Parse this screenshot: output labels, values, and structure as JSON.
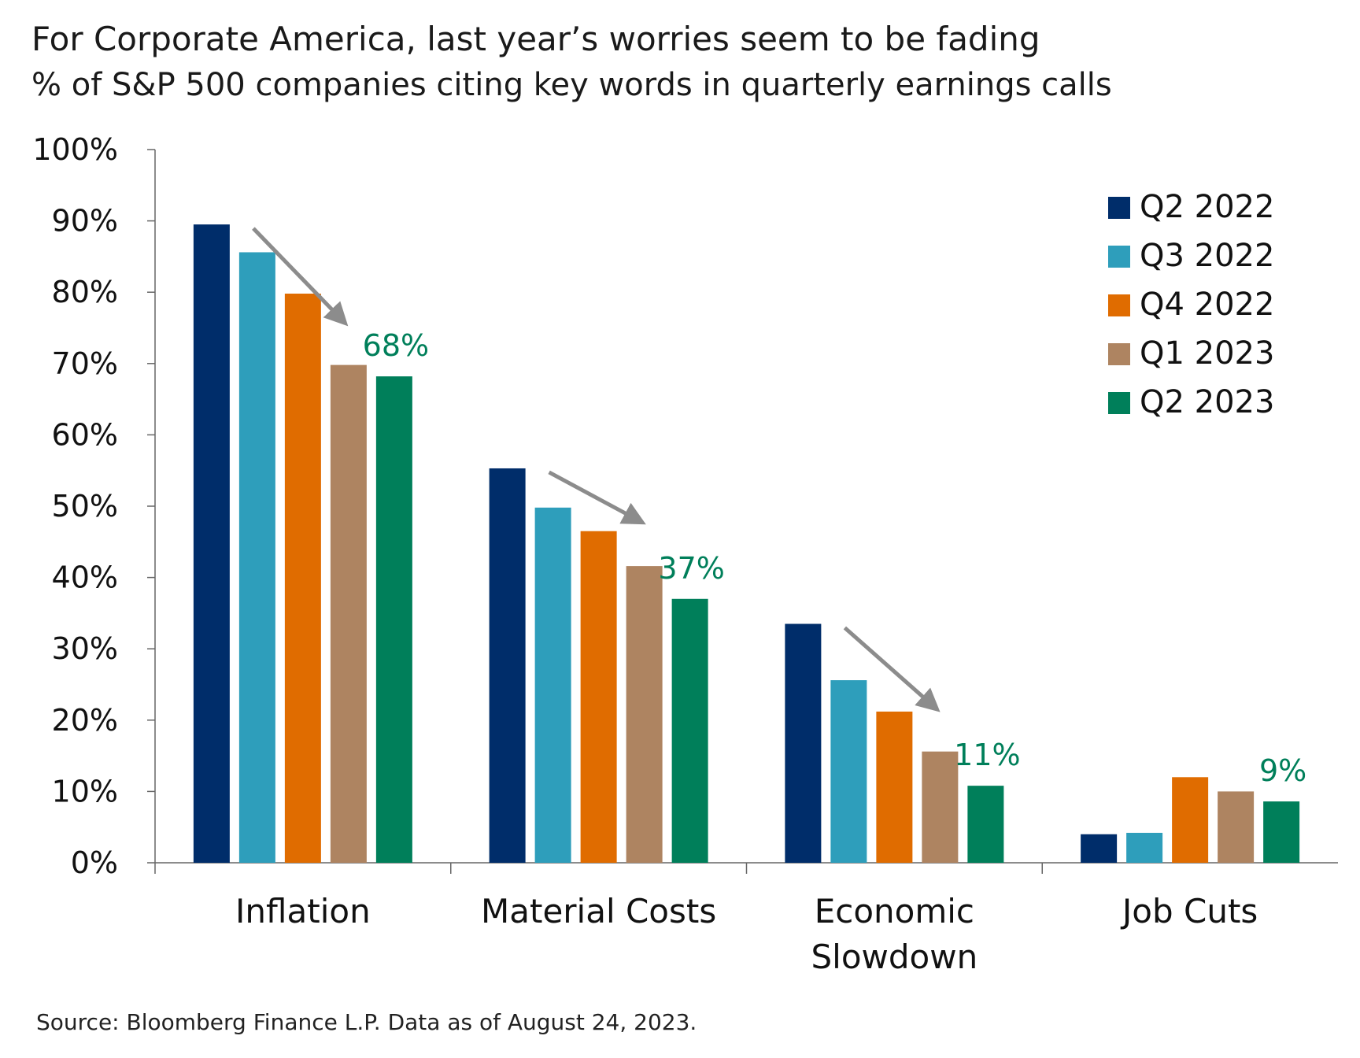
{
  "chart_data": {
    "type": "bar",
    "title": "For Corporate America, last year’s worries seem to be fading",
    "subtitle": "% of S&P 500 companies citing key words in quarterly earnings calls",
    "categories": [
      "Inflation",
      "Material Costs",
      "Economic Slowdown",
      "Job Cuts"
    ],
    "category_lines": [
      [
        "Inflation"
      ],
      [
        "Material Costs"
      ],
      [
        "Economic",
        "Slowdown"
      ],
      [
        "Job Cuts"
      ]
    ],
    "series": [
      {
        "name": "Q2 2022",
        "color": "#002d6a",
        "values": [
          89.5,
          55.3,
          33.5,
          4.0
        ]
      },
      {
        "name": "Q3 2022",
        "color": "#2e9ebb",
        "values": [
          85.6,
          49.8,
          25.6,
          4.2
        ]
      },
      {
        "name": "Q4 2022",
        "color": "#e06c00",
        "values": [
          79.8,
          46.5,
          21.2,
          12.0
        ]
      },
      {
        "name": "Q1 2023",
        "color": "#ae8461",
        "values": [
          69.8,
          41.6,
          15.6,
          10.0
        ]
      },
      {
        "name": "Q2 2023",
        "color": "#007f5a",
        "values": [
          68.2,
          37.0,
          10.8,
          8.6
        ]
      }
    ],
    "annotations": [
      "68%",
      "37%",
      "11%",
      "9%"
    ],
    "annotation_color": "#007f5a",
    "arrow_color": "#8c8c8c",
    "ylim": [
      0,
      100
    ],
    "yticks": [
      0,
      10,
      20,
      30,
      40,
      50,
      60,
      70,
      80,
      90,
      100
    ],
    "ytick_labels": [
      "0%",
      "10%",
      "20%",
      "30%",
      "40%",
      "50%",
      "60%",
      "70%",
      "80%",
      "90%",
      "100%"
    ],
    "legend_position": "top-right",
    "grid": false
  },
  "source": "Source: Bloomberg Finance L.P. Data as of August 24, 2023."
}
